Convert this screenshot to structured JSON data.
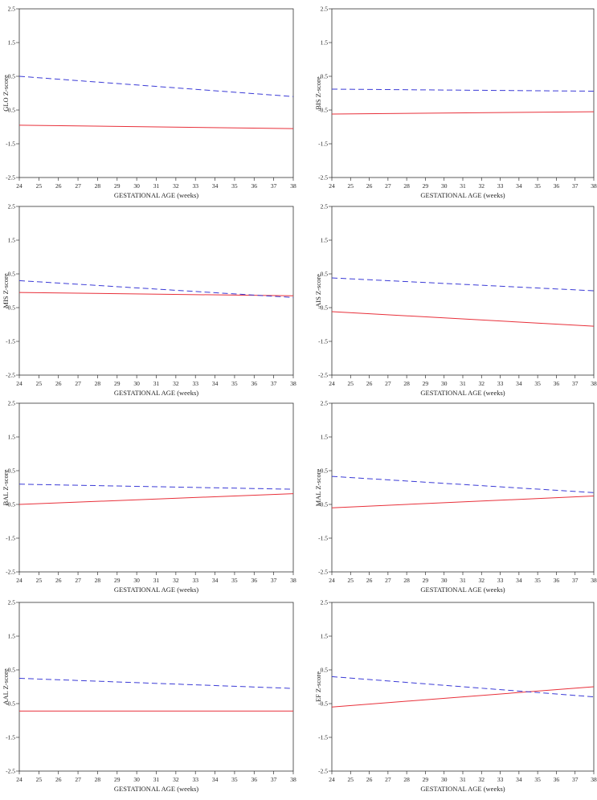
{
  "figure": {
    "colors": {
      "solid": "#e8303a",
      "dashed": "#3b3bd6",
      "axis": "#333333"
    }
  },
  "chart_data": [
    {
      "type": "line",
      "ylabel": "GLO Z-score",
      "xlabel": "GESTATIONAL AGE (weeks)",
      "xlim": [
        24,
        38
      ],
      "ylim": [
        -2.5,
        2.5
      ],
      "xticks": [
        "24",
        "25",
        "26",
        "27",
        "28",
        "29",
        "30",
        "31",
        "32",
        "33",
        "34",
        "35",
        "36",
        "37",
        "38"
      ],
      "yticks": [
        "2.5",
        "1.5",
        "0.5",
        "-0.5",
        "-1.5",
        "-2.5"
      ],
      "series": [
        {
          "style": "solid",
          "x": [
            24,
            38
          ],
          "y": [
            -0.95,
            -1.05
          ]
        },
        {
          "style": "dashed",
          "x": [
            24,
            38
          ],
          "y": [
            0.5,
            -0.1
          ]
        }
      ]
    },
    {
      "type": "line",
      "ylabel": "BIS Z-score",
      "xlabel": "GESTATIONAL AGE (weeks)",
      "xlim": [
        24,
        38
      ],
      "ylim": [
        -2.5,
        2.5
      ],
      "xticks": [
        "24",
        "25",
        "26",
        "27",
        "28",
        "29",
        "30",
        "31",
        "32",
        "33",
        "34",
        "35",
        "36",
        "37",
        "38"
      ],
      "yticks": [
        "2.5",
        "1.5",
        "0.5",
        "-0.5",
        "-1.5",
        "-2.5"
      ],
      "series": [
        {
          "style": "solid",
          "x": [
            24,
            38
          ],
          "y": [
            -0.62,
            -0.55
          ]
        },
        {
          "style": "dashed",
          "x": [
            24,
            38
          ],
          "y": [
            0.12,
            0.06
          ]
        }
      ]
    },
    {
      "type": "line",
      "ylabel": "MIS Z-score",
      "xlabel": "GESTATIONAL AGE (weeks)",
      "xlim": [
        24,
        38
      ],
      "ylim": [
        -2.5,
        2.5
      ],
      "xticks": [
        "24",
        "25",
        "26",
        "27",
        "28",
        "29",
        "30",
        "31",
        "32",
        "33",
        "34",
        "35",
        "36",
        "37",
        "38"
      ],
      "yticks": [
        "2.5",
        "1.5",
        "0.5",
        "-0.5",
        "-1.5",
        "-2.5"
      ],
      "series": [
        {
          "style": "solid",
          "x": [
            24,
            38
          ],
          "y": [
            -0.05,
            -0.15
          ]
        },
        {
          "style": "dashed",
          "x": [
            24,
            38
          ],
          "y": [
            0.3,
            -0.2
          ]
        }
      ]
    },
    {
      "type": "line",
      "ylabel": "AIS Z-score",
      "xlabel": "GESTATIONAL AGE (weeks)",
      "xlim": [
        24,
        38
      ],
      "ylim": [
        -2.5,
        2.5
      ],
      "xticks": [
        "24",
        "25",
        "26",
        "27",
        "28",
        "29",
        "30",
        "31",
        "32",
        "33",
        "34",
        "35",
        "36",
        "37",
        "38"
      ],
      "yticks": [
        "2.5",
        "1.5",
        "0.5",
        "-0.5",
        "-1.5",
        "-2.5"
      ],
      "series": [
        {
          "style": "solid",
          "x": [
            24,
            38
          ],
          "y": [
            -0.62,
            -1.05
          ]
        },
        {
          "style": "dashed",
          "x": [
            24,
            38
          ],
          "y": [
            0.38,
            0.0
          ]
        }
      ]
    },
    {
      "type": "line",
      "ylabel": "BAL Z-score",
      "xlabel": "GESTATIONAL AGE (weeks)",
      "xlim": [
        24,
        38
      ],
      "ylim": [
        -2.5,
        2.5
      ],
      "xticks": [
        "24",
        "25",
        "26",
        "27",
        "28",
        "29",
        "30",
        "31",
        "32",
        "33",
        "34",
        "35",
        "36",
        "37",
        "38"
      ],
      "yticks": [
        "2.5",
        "1.5",
        "0.5",
        "-0.5",
        "-1.5",
        "-2.5"
      ],
      "series": [
        {
          "style": "solid",
          "x": [
            24,
            38
          ],
          "y": [
            -0.5,
            -0.18
          ]
        },
        {
          "style": "dashed",
          "x": [
            24,
            38
          ],
          "y": [
            0.1,
            -0.05
          ]
        }
      ]
    },
    {
      "type": "line",
      "ylabel": "MAL Z-score",
      "xlabel": "GESTATIONAL AGE (weeks)",
      "xlim": [
        24,
        38
      ],
      "ylim": [
        -2.5,
        2.5
      ],
      "xticks": [
        "24",
        "25",
        "26",
        "27",
        "28",
        "29",
        "30",
        "31",
        "32",
        "33",
        "34",
        "35",
        "36",
        "37",
        "38"
      ],
      "yticks": [
        "2.5",
        "1.5",
        "0.5",
        "-0.5",
        "-1.5",
        "-2.5"
      ],
      "series": [
        {
          "style": "solid",
          "x": [
            24,
            38
          ],
          "y": [
            -0.6,
            -0.25
          ]
        },
        {
          "style": "dashed",
          "x": [
            24,
            38
          ],
          "y": [
            0.33,
            -0.15
          ]
        }
      ]
    },
    {
      "type": "line",
      "ylabel": "AAL Z-score",
      "xlabel": "GESTATIONAL AGE (weeks)",
      "xlim": [
        24,
        38
      ],
      "ylim": [
        -2.5,
        2.5
      ],
      "xticks": [
        "24",
        "25",
        "26",
        "27",
        "28",
        "29",
        "30",
        "31",
        "32",
        "33",
        "34",
        "35",
        "36",
        "37",
        "38"
      ],
      "yticks": [
        "2.5",
        "1.5",
        "0.5",
        "-0.5",
        "-1.5",
        "-2.5"
      ],
      "series": [
        {
          "style": "solid",
          "x": [
            24,
            38
          ],
          "y": [
            -0.72,
            -0.72
          ]
        },
        {
          "style": "dashed",
          "x": [
            24,
            38
          ],
          "y": [
            0.25,
            -0.05
          ]
        }
      ]
    },
    {
      "type": "line",
      "ylabel": "EF Z-score",
      "xlabel": "GESTATIONAL AGE (weeks)",
      "xlim": [
        24,
        38
      ],
      "ylim": [
        -2.5,
        2.5
      ],
      "xticks": [
        "24",
        "25",
        "26",
        "27",
        "28",
        "29",
        "30",
        "31",
        "32",
        "33",
        "34",
        "35",
        "36",
        "37",
        "38"
      ],
      "yticks": [
        "2.5",
        "1.5",
        "0.5",
        "-0.5",
        "-1.5",
        "-2.5"
      ],
      "series": [
        {
          "style": "solid",
          "x": [
            24,
            38
          ],
          "y": [
            -0.6,
            0.0
          ]
        },
        {
          "style": "dashed",
          "x": [
            24,
            38
          ],
          "y": [
            0.3,
            -0.3
          ]
        }
      ]
    }
  ]
}
